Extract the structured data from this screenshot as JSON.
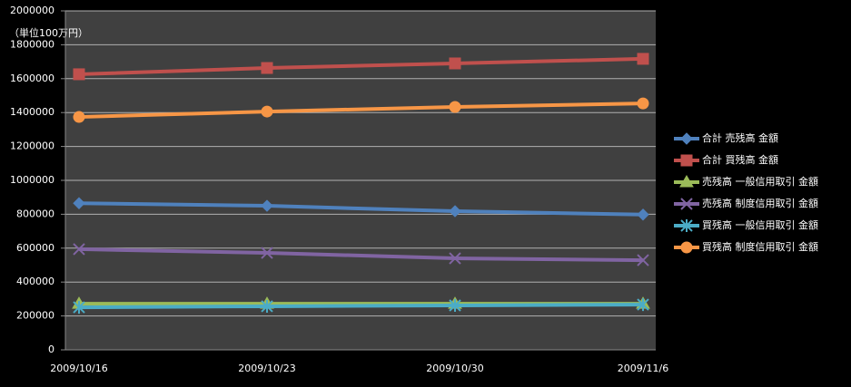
{
  "chart_data": {
    "type": "line",
    "annotation": "（単位100万円）",
    "categories": [
      "2009/10/16",
      "2009/10/23",
      "2009/10/30",
      "2009/11/6"
    ],
    "series": [
      {
        "name": "合計 売残高 金額",
        "color": "#4f81bd",
        "marker": "diamond",
        "values": [
          865000,
          850000,
          818000,
          798000
        ]
      },
      {
        "name": "合計 買残高 金額",
        "color": "#c0504d",
        "marker": "square",
        "values": [
          1626000,
          1663000,
          1690000,
          1717000
        ]
      },
      {
        "name": "売残高 一般信用取引 金額",
        "color": "#9bbb59",
        "marker": "triangle",
        "values": [
          272000,
          272000,
          272000,
          272000
        ]
      },
      {
        "name": "売残高 制度信用取引 金額",
        "color": "#8064a2",
        "marker": "x",
        "values": [
          594000,
          572000,
          540000,
          529000
        ]
      },
      {
        "name": "買残高 一般信用取引 金額",
        "color": "#4bacc6",
        "marker": "star",
        "values": [
          251000,
          257000,
          262000,
          267000
        ]
      },
      {
        "name": "買残高 制度信用取引 金額",
        "color": "#f79646",
        "marker": "circle",
        "values": [
          1374000,
          1406000,
          1433000,
          1454000
        ]
      }
    ],
    "ylim": [
      0,
      2000000
    ],
    "yticks": [
      0,
      200000,
      400000,
      600000,
      800000,
      1000000,
      1200000,
      1400000,
      1600000,
      1800000,
      2000000
    ],
    "grid": true,
    "legend": "right"
  }
}
